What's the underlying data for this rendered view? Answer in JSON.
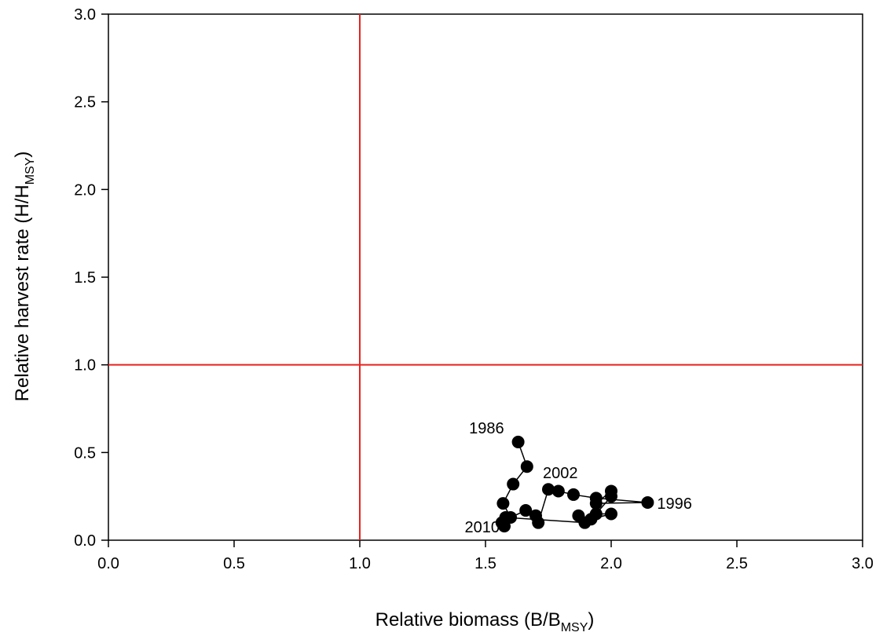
{
  "chart_data": {
    "type": "scatter",
    "xlabel": {
      "main": "Relative biomass (B/B",
      "sub": "MSY",
      "end": ")"
    },
    "ylabel": {
      "main": "Relative harvest rate (H/H",
      "sub": "MSY",
      "end": ")"
    },
    "xlim": [
      0,
      3
    ],
    "ylim": [
      0,
      3
    ],
    "xticks": [
      "0.0",
      "0.5",
      "1.0",
      "1.5",
      "2.0",
      "2.5",
      "3.0"
    ],
    "yticks": [
      "0.0",
      "0.5",
      "1.0",
      "1.5",
      "2.0",
      "2.5",
      "3.0"
    ],
    "reference_lines": {
      "x": 1.0,
      "y": 1.0,
      "color": "#e8221e"
    },
    "grid": false,
    "series": [
      {
        "connected": true,
        "color": "#000000",
        "points": [
          [
            1.63,
            0.56
          ],
          [
            1.665,
            0.42
          ],
          [
            1.61,
            0.32
          ],
          [
            1.57,
            0.21
          ],
          [
            1.6,
            0.13
          ],
          [
            1.66,
            0.17
          ],
          [
            1.7,
            0.14
          ],
          [
            1.71,
            0.1
          ],
          [
            1.75,
            0.29
          ],
          [
            1.79,
            0.28
          ],
          [
            1.85,
            0.26
          ],
          [
            1.94,
            0.24
          ],
          [
            2.145,
            0.215
          ],
          [
            1.94,
            0.21
          ],
          [
            2.0,
            0.28
          ],
          [
            2.0,
            0.25
          ],
          [
            1.94,
            0.15
          ],
          [
            2.0,
            0.15
          ],
          [
            1.92,
            0.12
          ],
          [
            1.87,
            0.14
          ],
          [
            1.895,
            0.1
          ],
          [
            1.58,
            0.13
          ],
          [
            1.565,
            0.1
          ],
          [
            1.575,
            0.08
          ]
        ]
      }
    ],
    "annotations": [
      {
        "text": "1986",
        "x": 1.63,
        "y": 0.56
      },
      {
        "text": "2002",
        "x": 1.75,
        "y": 0.29
      },
      {
        "text": "1996",
        "x": 2.145,
        "y": 0.215
      },
      {
        "text": "2010",
        "x": 1.575,
        "y": 0.08
      }
    ]
  }
}
